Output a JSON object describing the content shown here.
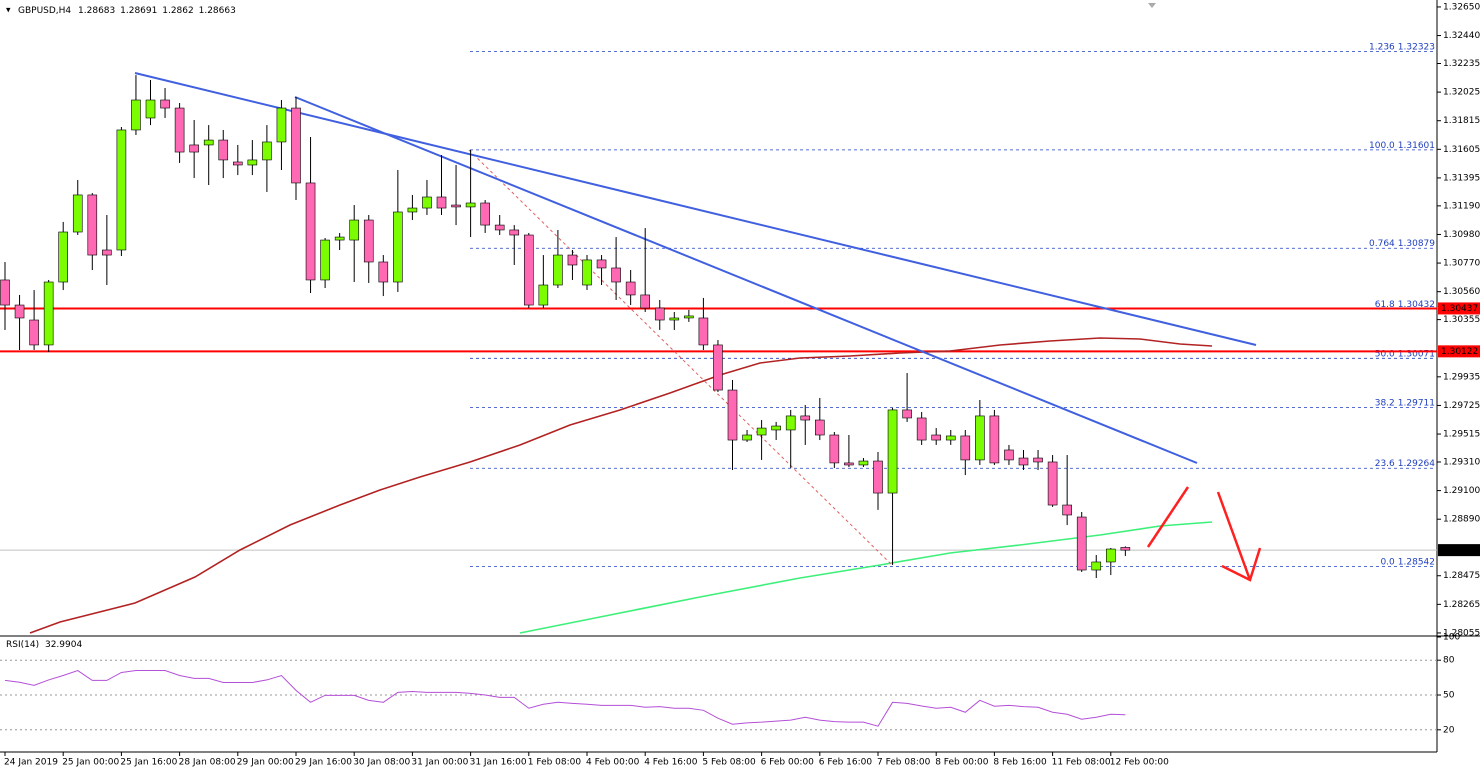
{
  "chart_data": {
    "type": "candlestick",
    "symbol": "GBPUSD,H4",
    "categories": [
      "24 Jan 2019",
      null,
      null,
      null,
      "25 Jan 00:00",
      null,
      null,
      null,
      "25 Jan 16:00",
      null,
      null,
      null,
      "28 Jan 08:00",
      null,
      null,
      null,
      "29 Jan 00:00",
      null,
      null,
      null,
      "29 Jan 16:00",
      null,
      null,
      null,
      "30 Jan 08:00",
      null,
      null,
      null,
      "31 Jan 00:00",
      null,
      null,
      null,
      "31 Jan 16:00",
      null,
      null,
      null,
      "1 Feb 08:00",
      null,
      null,
      null,
      "4 Feb 00:00",
      null,
      null,
      null,
      "4 Feb 16:00",
      null,
      null,
      null,
      "5 Feb 08:00",
      null,
      null,
      null,
      "6 Feb 00:00",
      null,
      null,
      null,
      "6 Feb 16:00",
      null,
      null,
      null,
      "7 Feb 08:00",
      null,
      null,
      null,
      "8 Feb 00:00",
      null,
      null,
      null,
      "8 Feb 16:00",
      null,
      null,
      null,
      "11 Feb 08:00",
      null,
      null,
      null,
      "12 Feb 00:00",
      null
    ],
    "open": [
      1.30646,
      1.30462,
      1.30352,
      1.30169,
      1.30631,
      1.30998,
      1.3127,
      1.30866,
      1.30866,
      1.31747,
      1.31835,
      1.31967,
      1.31908,
      1.31637,
      1.31637,
      1.31673,
      1.31512,
      1.3149,
      1.31527,
      1.31659,
      1.31908,
      1.31358,
      1.30646,
      1.30939,
      1.30939,
      1.31086,
      1.30778,
      1.30631,
      1.31145,
      1.31174,
      1.31255,
      1.31196,
      1.31182,
      1.31211,
      1.31049,
      1.31013,
      1.30976,
      1.30462,
      1.30609,
      1.30829,
      1.30609,
      1.30793,
      1.30734,
      1.30631,
      1.30536,
      1.3044,
      1.30352,
      1.30367,
      1.30367,
      1.30169,
      1.29838,
      1.29471,
      1.29508,
      1.29545,
      1.29545,
      1.29648,
      1.29618,
      1.29508,
      1.29303,
      1.29288,
      1.29317,
      1.29082,
      1.29692,
      1.29633,
      1.29508,
      1.29471,
      1.29501,
      1.29325,
      1.29648,
      1.29398,
      1.29339,
      1.29339,
      1.2931,
      1.28994,
      1.28906,
      1.28517,
      1.28576,
      1.28683
    ],
    "high": [
      1.30778,
      1.30536,
      1.30572,
      1.30646,
      1.31072,
      1.3138,
      1.31284,
      1.31123,
      1.31769,
      1.3215,
      1.32114,
      1.32055,
      1.31945,
      1.3182,
      1.31783,
      1.31747,
      1.31637,
      1.31673,
      1.31783,
      1.31967,
      1.31989,
      1.31695,
      1.30954,
      1.30991,
      1.31196,
      1.31123,
      1.30829,
      1.31453,
      1.3127,
      1.3138,
      1.31563,
      1.3149,
      1.316,
      1.31233,
      1.31123,
      1.31049,
      1.30991,
      1.30829,
      1.31013,
      1.30866,
      1.30829,
      1.30829,
      1.30961,
      1.30719,
      1.31027,
      1.30499,
      1.30411,
      1.30426,
      1.30514,
      1.30205,
      1.29912,
      1.29545,
      1.29618,
      1.29604,
      1.29692,
      1.29728,
      1.2978,
      1.2953,
      1.29508,
      1.29339,
      1.29383,
      1.29706,
      1.29963,
      1.29677,
      1.29559,
      1.29545,
      1.29545,
      1.29765,
      1.29692,
      1.29435,
      1.29398,
      1.29398,
      1.29361,
      1.29361,
      1.28943,
      1.28627,
      1.28679,
      1.28691
    ],
    "low": [
      1.30279,
      1.30132,
      1.30132,
      1.30117,
      1.30572,
      1.30976,
      1.30719,
      1.30609,
      1.30822,
      1.3171,
      1.31783,
      1.31835,
      1.31505,
      1.31394,
      1.31343,
      1.31394,
      1.31416,
      1.31416,
      1.31292,
      1.31453,
      1.31233,
      1.3055,
      1.30587,
      1.30866,
      1.30631,
      1.30624,
      1.30528,
      1.30558,
      1.31086,
      1.31123,
      1.31123,
      1.31049,
      1.30961,
      1.30991,
      1.30976,
      1.30756,
      1.3044,
      1.3044,
      1.30587,
      1.30646,
      1.30572,
      1.30609,
      1.30499,
      1.30462,
      1.30411,
      1.30279,
      1.30279,
      1.30338,
      1.30132,
      1.29824,
      1.29251,
      1.29457,
      1.29325,
      1.29471,
      1.29266,
      1.29435,
      1.29471,
      1.29266,
      1.29273,
      1.29273,
      1.28958,
      1.28554,
      1.29604,
      1.29435,
      1.29435,
      1.29435,
      1.29214,
      1.29288,
      1.29288,
      1.29288,
      1.29251,
      1.29251,
      1.2898,
      1.28847,
      1.28503,
      1.28458,
      1.2848,
      1.2862
    ],
    "close": [
      1.30462,
      1.30367,
      1.30169,
      1.30631,
      1.30998,
      1.3127,
      1.30829,
      1.30829,
      1.31747,
      1.31967,
      1.31967,
      1.31908,
      1.31585,
      1.31585,
      1.31673,
      1.31527,
      1.3149,
      1.31527,
      1.31659,
      1.31908,
      1.31358,
      1.30646,
      1.30939,
      1.30961,
      1.31086,
      1.30778,
      1.30631,
      1.31145,
      1.31174,
      1.31255,
      1.31174,
      1.31182,
      1.31211,
      1.31049,
      1.31013,
      1.30976,
      1.30462,
      1.30609,
      1.30829,
      1.30756,
      1.30793,
      1.30734,
      1.30631,
      1.30536,
      1.3044,
      1.30352,
      1.30367,
      1.30382,
      1.30169,
      1.29838,
      1.29471,
      1.29508,
      1.29559,
      1.29574,
      1.29648,
      1.29618,
      1.29508,
      1.29303,
      1.29288,
      1.29317,
      1.29082,
      1.29692,
      1.29633,
      1.29471,
      1.29471,
      1.29501,
      1.29325,
      1.29648,
      1.29303,
      1.29325,
      1.29288,
      1.2931,
      1.28994,
      1.28921,
      1.28517,
      1.28576,
      1.28671,
      1.28663
    ],
    "up_color": "#7cfc00",
    "down_color": "#ff69b4",
    "ylim": [
      1.2804,
      1.32701
    ],
    "yticks": [
      {
        "value": 1.3265,
        "label": "1.32650"
      },
      {
        "value": 1.3244,
        "label": "1.32440"
      },
      {
        "value": 1.32235,
        "label": "1.32235"
      },
      {
        "value": 1.32025,
        "label": "1.32025"
      },
      {
        "value": 1.31815,
        "label": "1.31815"
      },
      {
        "value": 1.31605,
        "label": "1.31605"
      },
      {
        "value": 1.31395,
        "label": "1.31395"
      },
      {
        "value": 1.3119,
        "label": "1.31190"
      },
      {
        "value": 1.3098,
        "label": "1.30980"
      },
      {
        "value": 1.3077,
        "label": "1.30770"
      },
      {
        "value": 1.3056,
        "label": "1.30560"
      },
      {
        "value": 1.30355,
        "label": "1.30355"
      },
      {
        "value": 1.29935,
        "label": "1.29935"
      },
      {
        "value": 1.29725,
        "label": "1.29725"
      },
      {
        "value": 1.29515,
        "label": "1.29515"
      },
      {
        "value": 1.2931,
        "label": "1.29310"
      },
      {
        "value": 1.291,
        "label": "1.29100"
      },
      {
        "value": 1.2889,
        "label": "1.28890"
      },
      {
        "value": 1.28475,
        "label": "1.28475"
      },
      {
        "value": 1.28265,
        "label": "1.28265"
      },
      {
        "value": 1.28055,
        "label": "1.28055"
      }
    ],
    "levels": [
      {
        "value": 1.30437,
        "color": "#ff0000"
      },
      {
        "value": 1.30122,
        "color": "#ff0000"
      }
    ],
    "fibonacci": [
      {
        "ratio": "1.236",
        "price": 1.32323
      },
      {
        "ratio": "100.0",
        "price": 1.31601
      },
      {
        "ratio": "0.764",
        "price": 1.30879
      },
      {
        "ratio": "61.8",
        "price": 1.30432
      },
      {
        "ratio": "50.0",
        "price": 1.30071
      },
      {
        "ratio": "38.2",
        "price": 1.29711
      },
      {
        "ratio": "23.6",
        "price": 1.29264
      },
      {
        "ratio": "0.0",
        "price": 1.28542
      }
    ],
    "fib_color": "#1f3fbf",
    "rsi": {
      "name": "RSI(14)",
      "color": "#b44fd8",
      "ylim": [
        0,
        100
      ],
      "yticks": [
        20,
        50,
        80,
        100
      ],
      "values": [
        62.6,
        61,
        58.3,
        63,
        66.8,
        71.1,
        62.6,
        62.6,
        69.4,
        71.1,
        71.1,
        71.1,
        66.8,
        64.3,
        64.3,
        60.8,
        60.8,
        60.8,
        63,
        66.8,
        54.0,
        43.7,
        49.7,
        49.7,
        49.7,
        45.4,
        43.7,
        52.3,
        53,
        52.3,
        52.3,
        52.3,
        51.4,
        50,
        48.0,
        48,
        38.6,
        42,
        43.7,
        42.8,
        42,
        41.1,
        41.1,
        41.1,
        39.4,
        40,
        38.6,
        38.6,
        36.8,
        30.0,
        24.8,
        26,
        26.6,
        27.5,
        28.3,
        30.8,
        28.3,
        27,
        26.6,
        26.6,
        23.1,
        43.7,
        42.8,
        40.5,
        38.6,
        39.4,
        35.1,
        45.4,
        40.3,
        41.1,
        40,
        39.4,
        35.1,
        33.4,
        29.1,
        30.8,
        33.4,
        32.9904
      ]
    }
  }
}
